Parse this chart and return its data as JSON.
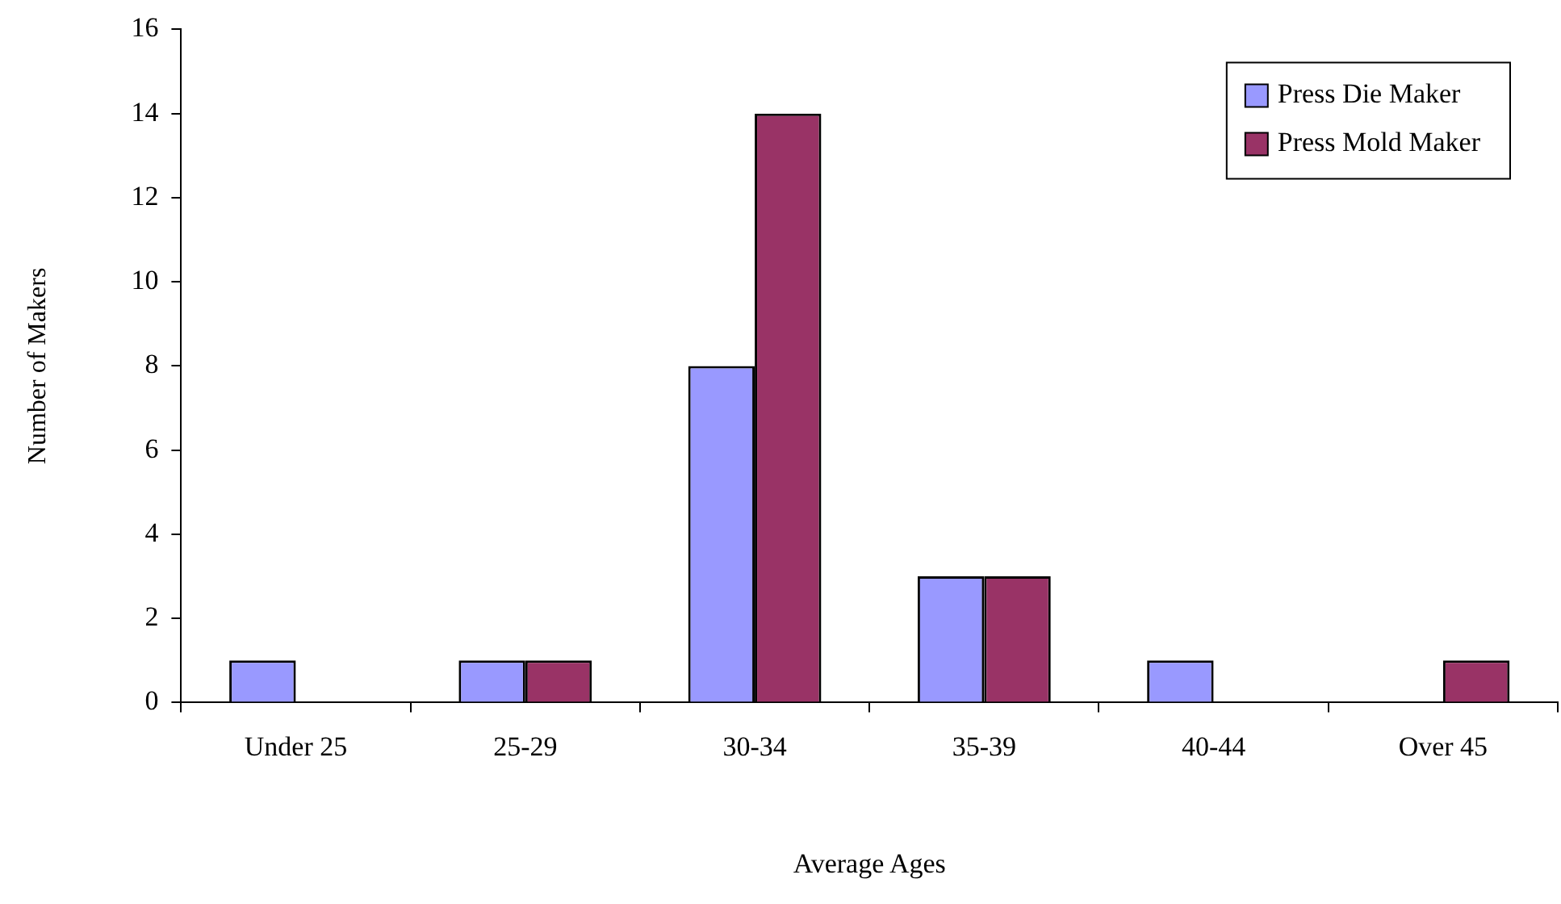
{
  "chart_data": {
    "type": "bar",
    "xlabel": "Average Ages",
    "ylabel": "Number of Makers",
    "categories": [
      "Under 25",
      "25-29",
      "30-34",
      "35-39",
      "40-44",
      "Over 45"
    ],
    "series": [
      {
        "name": "Press Die Maker",
        "color": "#9999ff",
        "values": [
          1,
          1,
          8,
          3,
          1,
          0
        ]
      },
      {
        "name": "Press Mold Maker",
        "color": "#993366",
        "values": [
          0,
          1,
          14,
          3,
          0,
          1
        ]
      }
    ],
    "ylim": [
      0,
      16
    ],
    "yticks": [
      0,
      2,
      4,
      6,
      8,
      10,
      12,
      14,
      16
    ],
    "grid": false,
    "legend": "top right"
  }
}
